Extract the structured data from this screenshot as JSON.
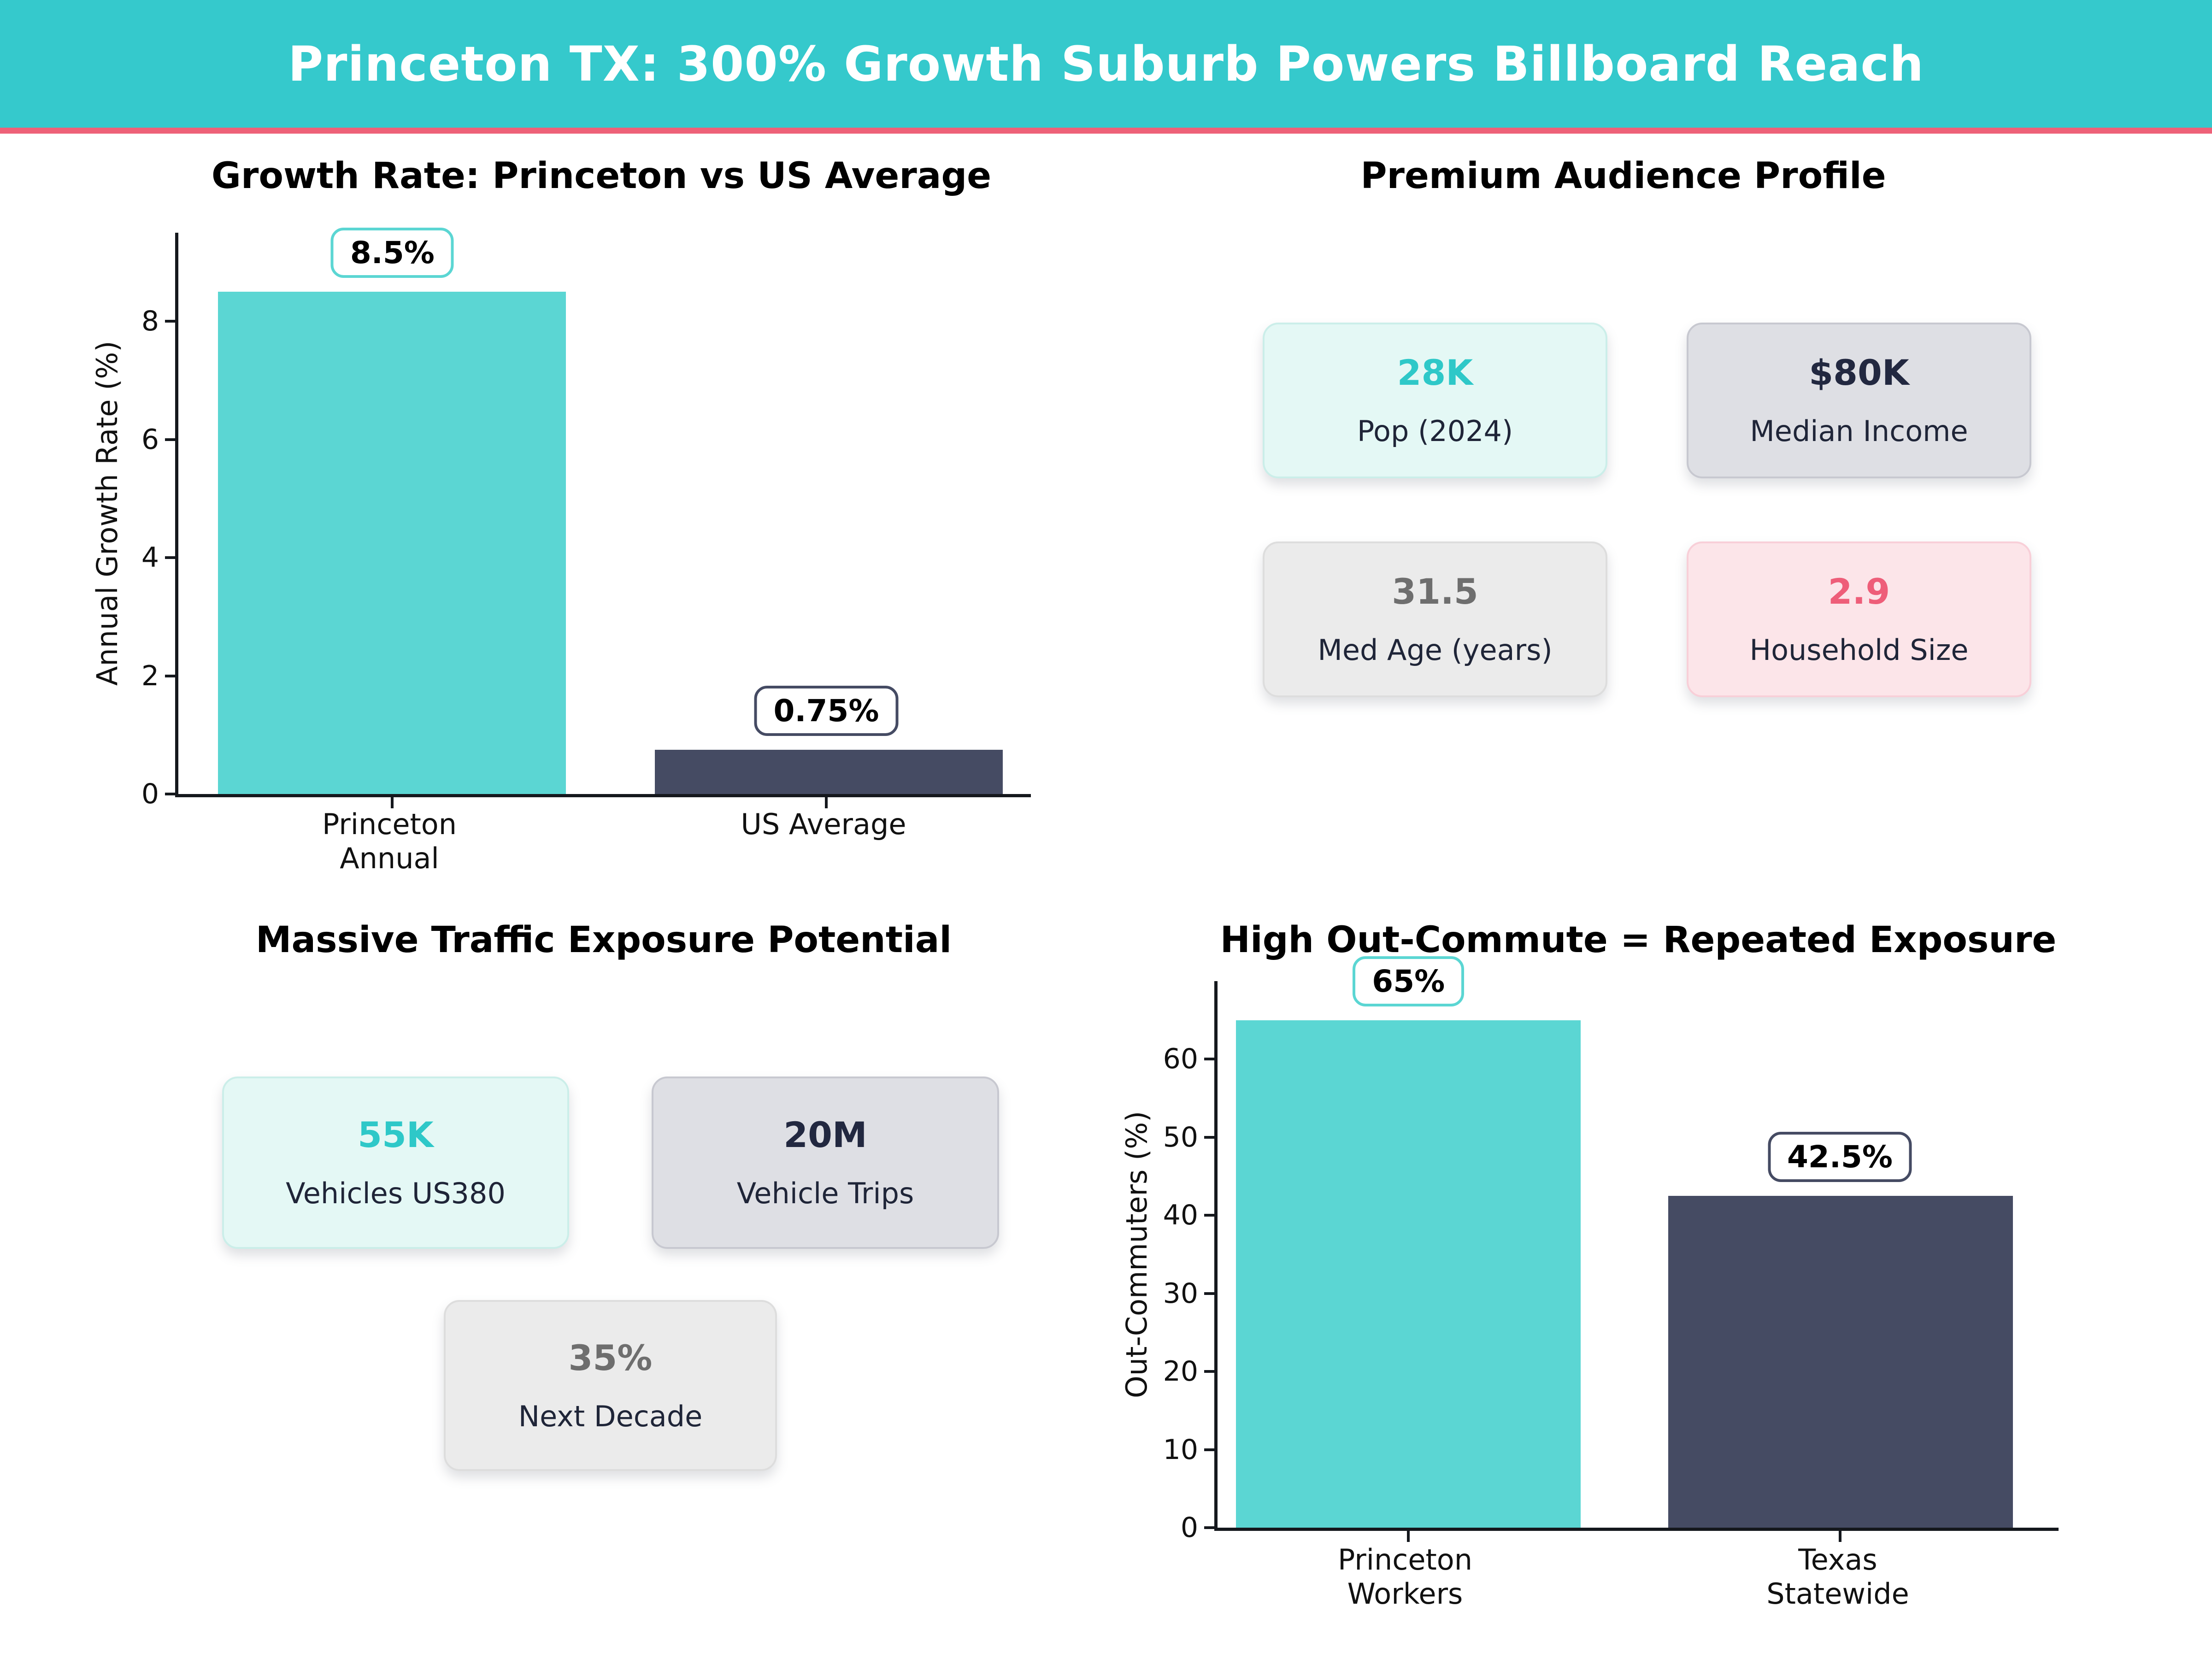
{
  "header": {
    "title": "Princeton TX: 300% Growth Suburb Powers Billboard Reach"
  },
  "palette": {
    "header_bg": "#35C9CC",
    "accent": "#EE6178",
    "bar_teal": "#5BD6D3",
    "bar_navy": "#454B63"
  },
  "chart_data": [
    {
      "type": "bar",
      "title": "Growth Rate: Princeton vs US Average",
      "categories": [
        "Princeton Annual",
        "US Average"
      ],
      "tick_lines": [
        [
          "Princeton",
          "Annual"
        ],
        [
          "US Average",
          ""
        ]
      ],
      "values": [
        8.5,
        0.75
      ],
      "value_labels": [
        "8.5%",
        "0.75%"
      ],
      "xlabel": "",
      "ylabel": "Annual Growth Rate (%)",
      "yticks": [
        0,
        2,
        4,
        6,
        8
      ],
      "ylim": [
        0,
        9.5
      ],
      "grid": false,
      "legend": "none",
      "bar_colors": [
        "#5BD6D3",
        "#454B63"
      ]
    },
    {
      "type": "bar",
      "title": "High Out-Commute = Repeated Exposure",
      "categories": [
        "Princeton Workers",
        "Texas Statewide"
      ],
      "tick_lines": [
        [
          "Princeton",
          "Workers"
        ],
        [
          "Texas",
          "Statewide"
        ]
      ],
      "values": [
        65,
        42.5
      ],
      "value_labels": [
        "65%",
        "42.5%"
      ],
      "xlabel": "",
      "ylabel": "Out-Commuters (%)",
      "yticks": [
        0,
        10,
        20,
        30,
        40,
        50,
        60
      ],
      "ylim": [
        0,
        70
      ],
      "grid": false,
      "legend": "none",
      "bar_colors": [
        "#5BD6D3",
        "#454B63"
      ]
    }
  ],
  "audience": {
    "title": "Premium Audience Profile",
    "cards": [
      {
        "value": "28K",
        "label": "Pop (2024)",
        "value_color": "#2EC8C8"
      },
      {
        "value": "$80K",
        "label": "Median Income",
        "value_color": "#222840"
      },
      {
        "value": "31.5",
        "label": "Med Age (years)",
        "value_color": "#6E6E6E"
      },
      {
        "value": "2.9",
        "label": "Household Size",
        "value_color": "#EE5E79"
      }
    ]
  },
  "traffic": {
    "title": "Massive Traffic Exposure Potential",
    "cards": [
      {
        "value": "55K",
        "label": "Vehicles US380",
        "value_color": "#2EC8C8"
      },
      {
        "value": "20M",
        "label": "Vehicle Trips",
        "value_color": "#222840"
      },
      {
        "value": "35%",
        "label": "Next Decade",
        "value_color": "#6E6E6E"
      }
    ]
  }
}
